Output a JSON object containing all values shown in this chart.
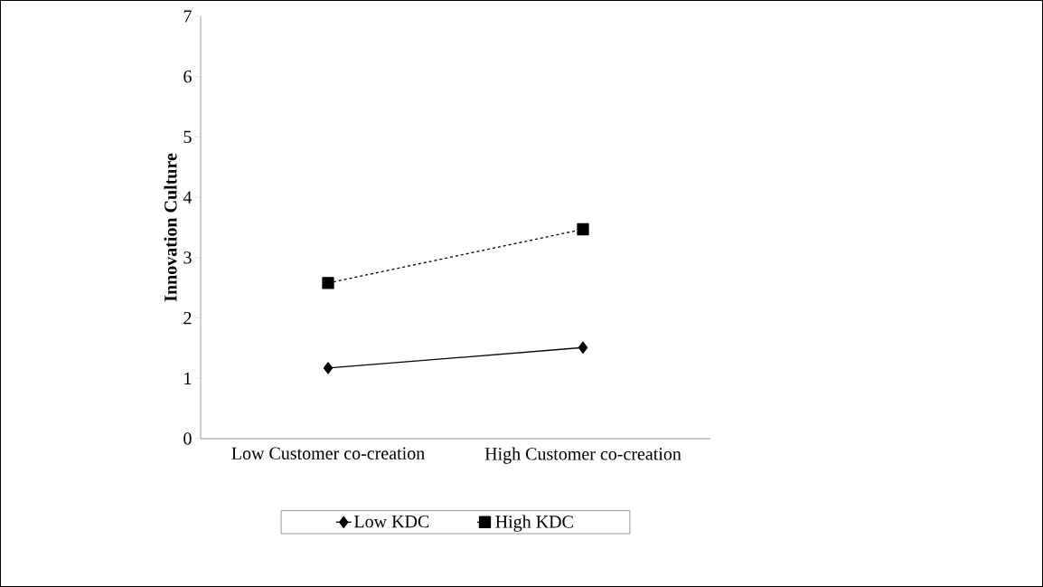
{
  "chart_data": {
    "type": "line",
    "ylabel": "Innovation Culture",
    "categories": [
      "Low Customer co-creation",
      "High Customer co-creation"
    ],
    "series": [
      {
        "name": "Low KDC",
        "color": "#000000",
        "values": [
          1.17,
          1.51
        ],
        "marker": "diamond",
        "line_style": "solid"
      },
      {
        "name": "High KDC",
        "color": "#000000",
        "values": [
          2.58,
          3.47
        ],
        "marker": "square",
        "line_style": "dashed"
      }
    ],
    "ylim": [
      0,
      7
    ],
    "yticks": [
      0,
      1,
      2,
      3,
      4,
      5,
      6,
      7
    ],
    "grid": false,
    "legend": "bottom"
  }
}
